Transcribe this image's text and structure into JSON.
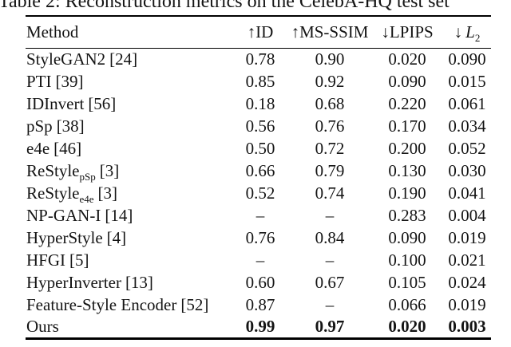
{
  "caption": "Table 2: Reconstruction metrics on the CelebA-HQ test set",
  "table": {
    "headers": {
      "method": "Method",
      "id": "↑ID",
      "ms_ssim": "↑MS-SSIM",
      "lpips": "↓LPIPS",
      "l2_arrow": "↓",
      "l2_letter": "L",
      "l2_sub": "2"
    },
    "rows": [
      {
        "method": "StyleGAN2",
        "sub": "",
        "ref": "[24]",
        "id": "0.78",
        "ms_ssim": "0.90",
        "lpips": "0.020",
        "l2": "0.090",
        "bold": false
      },
      {
        "method": "PTI",
        "sub": "",
        "ref": "[39]",
        "id": "0.85",
        "ms_ssim": "0.92",
        "lpips": "0.090",
        "l2": "0.015",
        "bold": false
      },
      {
        "method": "IDInvert",
        "sub": "",
        "ref": "[56]",
        "id": "0.18",
        "ms_ssim": "0.68",
        "lpips": "0.220",
        "l2": "0.061",
        "bold": false
      },
      {
        "method": "pSp",
        "sub": "",
        "ref": "[38]",
        "id": "0.56",
        "ms_ssim": "0.76",
        "lpips": "0.170",
        "l2": "0.034",
        "bold": false
      },
      {
        "method": "e4e",
        "sub": "",
        "ref": "[46]",
        "id": "0.50",
        "ms_ssim": "0.72",
        "lpips": "0.200",
        "l2": "0.052",
        "bold": false
      },
      {
        "method": "ReStyle",
        "sub": "pSp",
        "ref": "[3]",
        "id": "0.66",
        "ms_ssim": "0.79",
        "lpips": "0.130",
        "l2": "0.030",
        "bold": false
      },
      {
        "method": "ReStyle",
        "sub": "e4e",
        "ref": "[3]",
        "id": "0.52",
        "ms_ssim": "0.74",
        "lpips": "0.190",
        "l2": "0.041",
        "bold": false
      },
      {
        "method": "NP-GAN-I",
        "sub": "",
        "ref": "[14]",
        "id": "–",
        "ms_ssim": "–",
        "lpips": "0.283",
        "l2": "0.004",
        "bold": false
      },
      {
        "method": "HyperStyle",
        "sub": "",
        "ref": "[4]",
        "id": "0.76",
        "ms_ssim": "0.84",
        "lpips": "0.090",
        "l2": "0.019",
        "bold": false
      },
      {
        "method": "HFGI",
        "sub": "",
        "ref": "[5]",
        "id": "–",
        "ms_ssim": "–",
        "lpips": "0.100",
        "l2": "0.021",
        "bold": false
      },
      {
        "method": "HyperInverter",
        "sub": "",
        "ref": "[13]",
        "id": "0.60",
        "ms_ssim": "0.67",
        "lpips": "0.105",
        "l2": "0.024",
        "bold": false
      },
      {
        "method": "Feature-Style Encoder",
        "sub": "",
        "ref": "[52]",
        "id": "0.87",
        "ms_ssim": "–",
        "lpips": "0.066",
        "l2": "0.019",
        "bold": false
      },
      {
        "method": "Ours",
        "sub": "",
        "ref": "",
        "id": "0.99",
        "ms_ssim": "0.97",
        "lpips": "0.020",
        "l2": "0.003",
        "bold": true
      }
    ]
  }
}
